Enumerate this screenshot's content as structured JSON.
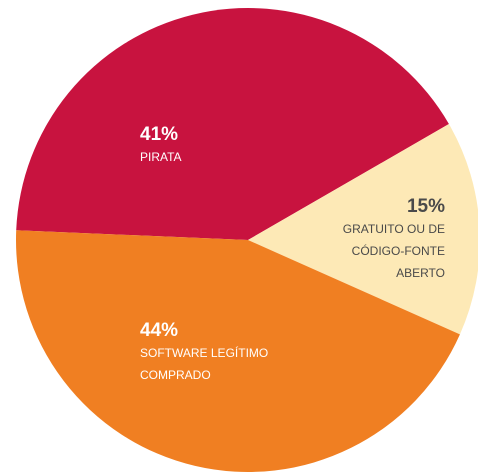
{
  "chart_data": {
    "type": "pie",
    "categories": [
      "PIRATA",
      "GRATUITO OU DE CÓDIGO-FONTE ABERTO",
      "SOFTWARE LEGÍTIMO COMPRADO"
    ],
    "values": [
      41,
      15,
      44
    ],
    "value_labels": [
      "41%",
      "15%",
      "44%"
    ],
    "colors": [
      "#c8133f",
      "#fde9b6",
      "#f07f22"
    ]
  }
}
